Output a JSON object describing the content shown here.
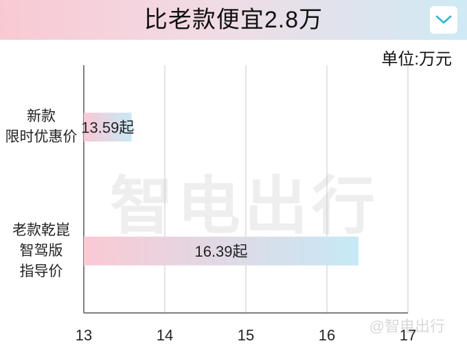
{
  "header": {
    "title": "比老款便宜2.8万",
    "dropdown_icon": "chevron-down-icon"
  },
  "unit_label": "单位:万元",
  "watermark": "智电出行",
  "corner_watermark": "@智电出行",
  "colors": {
    "header_gradient_start": "#f9c9d3",
    "header_gradient_end": "#cfeaf5",
    "bar_gradient_start": "#fac9d4",
    "bar_gradient_end": "#c6e9f6",
    "chevron": "#29b6d9"
  },
  "chart_data": {
    "type": "bar",
    "orientation": "horizontal",
    "categories": [
      [
        "新款",
        "限时优惠价"
      ],
      [
        "老款乾崑",
        "智驾版",
        "指导价"
      ]
    ],
    "values": [
      13.59,
      16.39
    ],
    "data_labels": [
      "13.59起",
      "16.39起"
    ],
    "x_ticks": [
      "13",
      "14",
      "15",
      "16",
      "17"
    ],
    "xlim": [
      13,
      17
    ],
    "grid": true,
    "title": "比老款便宜2.8万",
    "xlabel": "",
    "ylabel": ""
  }
}
